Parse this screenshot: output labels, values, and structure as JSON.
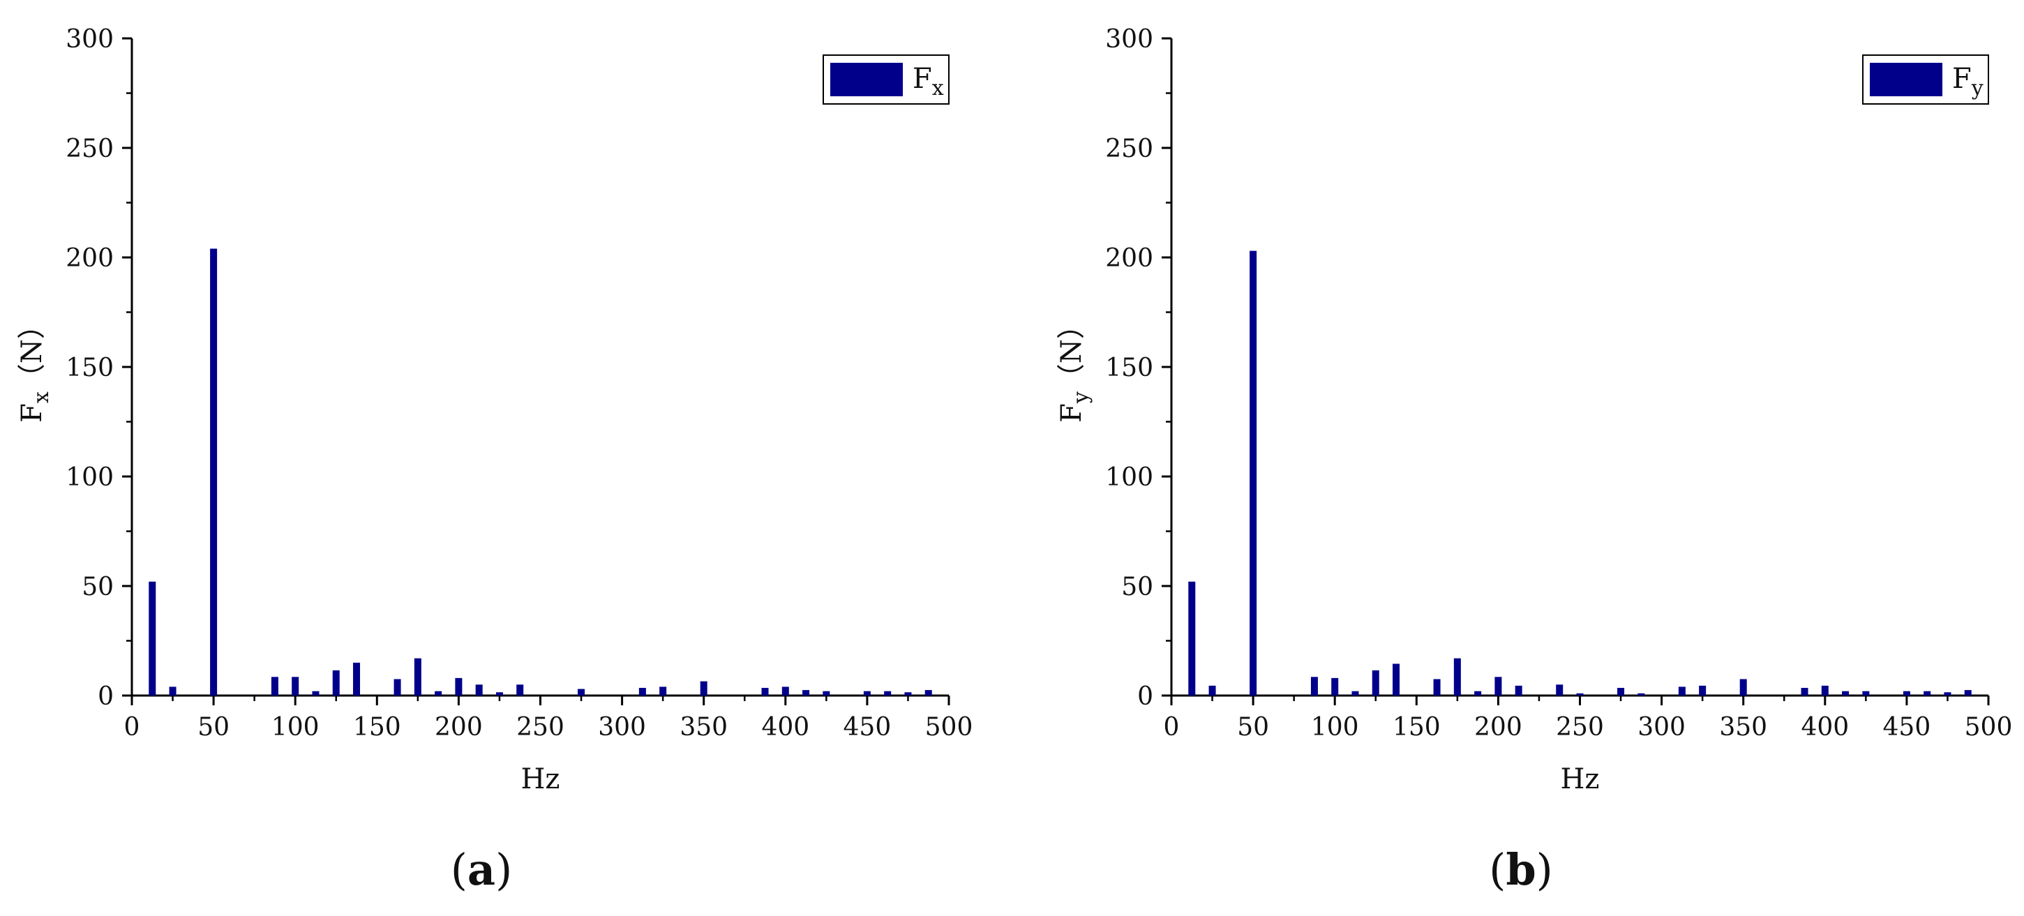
{
  "colors": {
    "bar": "#00008b",
    "axis": "#000000",
    "text": "#111111"
  },
  "chart_data": [
    {
      "type": "bar",
      "panel_label": {
        "open": "(",
        "letter": "a",
        "close": ")"
      },
      "xlabel": "Hz",
      "ylabel": {
        "main": "F",
        "sub": "x",
        "unit": "（N）"
      },
      "legend": {
        "main": "F",
        "sub": "x",
        "placement": "top-right"
      },
      "xlim": [
        0,
        500
      ],
      "ylim": [
        0,
        300
      ],
      "xticks": [
        0,
        50,
        100,
        150,
        200,
        250,
        300,
        350,
        400,
        450,
        500
      ],
      "yticks": [
        0,
        50,
        100,
        150,
        200,
        250,
        300
      ],
      "x": [
        12.5,
        25,
        50,
        87.5,
        100,
        112.5,
        125,
        137.5,
        162.5,
        175,
        187.5,
        200,
        212.5,
        225,
        237.5,
        275,
        312.5,
        325,
        350,
        387.5,
        400,
        412.5,
        425,
        450,
        462.5,
        475,
        487.5
      ],
      "values": [
        52,
        4,
        204,
        8.5,
        8.5,
        2,
        11.5,
        15,
        7.5,
        17,
        2,
        8,
        5,
        1.5,
        5,
        3,
        3.5,
        4,
        6.5,
        3.5,
        4,
        2.5,
        2,
        2,
        2,
        1.5,
        2.5
      ],
      "grid": false
    },
    {
      "type": "bar",
      "panel_label": {
        "open": "(",
        "letter": "b",
        "close": ")"
      },
      "xlabel": "Hz",
      "ylabel": {
        "main": "F",
        "sub": "y",
        "unit": "（N）"
      },
      "legend": {
        "main": "F",
        "sub": "y",
        "placement": "top-right"
      },
      "xlim": [
        0,
        500
      ],
      "ylim": [
        0,
        300
      ],
      "xticks": [
        0,
        50,
        100,
        150,
        200,
        250,
        300,
        350,
        400,
        450,
        500
      ],
      "yticks": [
        0,
        50,
        100,
        150,
        200,
        250,
        300
      ],
      "x": [
        12.5,
        25,
        50,
        87.5,
        100,
        112.5,
        125,
        137.5,
        162.5,
        175,
        187.5,
        200,
        212.5,
        237.5,
        250,
        275,
        287.5,
        312.5,
        325,
        350,
        387.5,
        400,
        412.5,
        425,
        450,
        462.5,
        475,
        487.5
      ],
      "values": [
        52,
        4.5,
        203,
        8.5,
        8,
        2,
        11.5,
        14.5,
        7.5,
        17,
        2,
        8.5,
        4.5,
        5,
        1,
        3.5,
        1,
        4,
        4.5,
        7.5,
        3.5,
        4.5,
        2,
        2,
        2,
        2,
        1.5,
        2.5
      ],
      "grid": false
    }
  ]
}
